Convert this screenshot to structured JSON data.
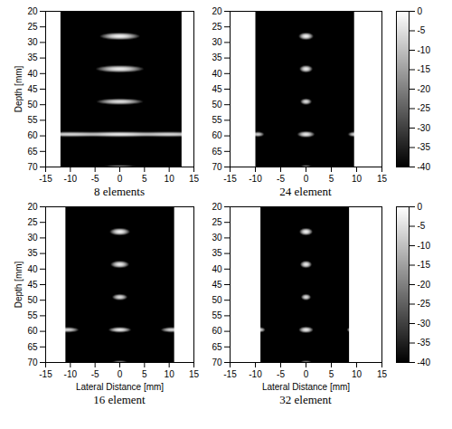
{
  "chart_data": [
    {
      "type": "heatmap",
      "title": "8 elements",
      "ylabel": "Depth [mm]",
      "xlim": [
        -15,
        15
      ],
      "xticks": [
        -15,
        -10,
        -5,
        0,
        5,
        10,
        15
      ],
      "ylim": [
        20,
        70
      ],
      "yticks": [
        20,
        25,
        30,
        35,
        40,
        45,
        50,
        55,
        60,
        65,
        70
      ],
      "image_xlim": [
        -12,
        12.5
      ],
      "clim": [
        -40,
        0
      ],
      "targets": [
        {
          "lateral": 0,
          "depth": 28,
          "peak": -2,
          "lateral_spread": 1.4,
          "axial_spread": 0.4
        },
        {
          "lateral": 0,
          "depth": 38.5,
          "peak": -3,
          "lateral_spread": 1.7,
          "axial_spread": 0.4
        },
        {
          "lateral": 0,
          "depth": 49,
          "peak": -5,
          "lateral_spread": 1.7,
          "axial_spread": 0.35
        },
        {
          "lateral": -10,
          "depth": 59.5,
          "peak": -6,
          "lateral_spread": 3.2,
          "axial_spread": 0.3
        },
        {
          "lateral": 0,
          "depth": 59.5,
          "peak": -3,
          "lateral_spread": 3.2,
          "axial_spread": 0.3
        },
        {
          "lateral": 10,
          "depth": 59.5,
          "peak": -6,
          "lateral_spread": 3.2,
          "axial_spread": 0.3
        },
        {
          "lateral": 0,
          "depth": 70,
          "peak": -18,
          "lateral_spread": 1.5,
          "axial_spread": 0.3
        }
      ]
    },
    {
      "type": "heatmap",
      "title": "24 element",
      "xlim": [
        -15,
        15
      ],
      "xticks": [
        -15,
        -10,
        -5,
        0,
        5,
        10,
        15
      ],
      "ylim": [
        20,
        70
      ],
      "yticks": [
        20,
        25,
        30,
        35,
        40,
        45,
        50,
        55,
        60,
        65,
        70
      ],
      "image_xlim": [
        -10,
        9.5
      ],
      "clim": [
        -40,
        0
      ],
      "cticks": [
        0,
        -5,
        -10,
        -15,
        -20,
        -25,
        -30,
        -35,
        -40
      ],
      "targets": [
        {
          "lateral": 0,
          "depth": 28,
          "peak": -2,
          "lateral_spread": 0.5,
          "axial_spread": 0.4
        },
        {
          "lateral": 0,
          "depth": 38.5,
          "peak": -3,
          "lateral_spread": 0.45,
          "axial_spread": 0.4
        },
        {
          "lateral": 0,
          "depth": 49,
          "peak": -5,
          "lateral_spread": 0.4,
          "axial_spread": 0.35
        },
        {
          "lateral": -9.5,
          "depth": 59.5,
          "peak": -7,
          "lateral_spread": 0.45,
          "axial_spread": 0.3
        },
        {
          "lateral": 0,
          "depth": 59.5,
          "peak": -3,
          "lateral_spread": 0.6,
          "axial_spread": 0.35
        },
        {
          "lateral": 9.5,
          "depth": 59.5,
          "peak": -7,
          "lateral_spread": 0.45,
          "axial_spread": 0.3
        },
        {
          "lateral": 0,
          "depth": 70,
          "peak": -18,
          "lateral_spread": 0.5,
          "axial_spread": 0.3
        }
      ]
    },
    {
      "type": "heatmap",
      "title": "16 element",
      "xlabel": "Lateral Distance [mm]",
      "ylabel": "Depth [mm]",
      "xlim": [
        -15,
        15
      ],
      "xticks": [
        -15,
        -10,
        -5,
        0,
        5,
        10,
        15
      ],
      "ylim": [
        20,
        70
      ],
      "yticks": [
        20,
        25,
        30,
        35,
        40,
        45,
        50,
        55,
        60,
        65,
        70
      ],
      "image_xlim": [
        -11,
        11
      ],
      "clim": [
        -40,
        0
      ],
      "targets": [
        {
          "lateral": 0,
          "depth": 28,
          "peak": -2,
          "lateral_spread": 0.7,
          "axial_spread": 0.4
        },
        {
          "lateral": 0,
          "depth": 38.5,
          "peak": -3,
          "lateral_spread": 0.65,
          "axial_spread": 0.4
        },
        {
          "lateral": 0,
          "depth": 49,
          "peak": -5,
          "lateral_spread": 0.55,
          "axial_spread": 0.35
        },
        {
          "lateral": -10.5,
          "depth": 59.5,
          "peak": -6,
          "lateral_spread": 0.8,
          "axial_spread": 0.3
        },
        {
          "lateral": 0,
          "depth": 59.5,
          "peak": -3,
          "lateral_spread": 0.8,
          "axial_spread": 0.3
        },
        {
          "lateral": 10.5,
          "depth": 59.5,
          "peak": -6,
          "lateral_spread": 0.8,
          "axial_spread": 0.3
        },
        {
          "lateral": 0,
          "depth": 70,
          "peak": -18,
          "lateral_spread": 0.7,
          "axial_spread": 0.3
        }
      ]
    },
    {
      "type": "heatmap",
      "title": "32 element",
      "xlabel": "Lateral Distance [mm]",
      "xlim": [
        -15,
        15
      ],
      "xticks": [
        -15,
        -10,
        -5,
        0,
        5,
        10,
        15
      ],
      "ylim": [
        20,
        70
      ],
      "yticks": [
        20,
        25,
        30,
        35,
        40,
        45,
        50,
        55,
        60,
        65,
        70
      ],
      "image_xlim": [
        -9,
        8.5
      ],
      "clim": [
        -40,
        0
      ],
      "cticks": [
        0,
        -5,
        -10,
        -15,
        -20,
        -25,
        -30,
        -35,
        -40
      ],
      "targets": [
        {
          "lateral": 0,
          "depth": 28,
          "peak": -2,
          "lateral_spread": 0.45,
          "axial_spread": 0.4
        },
        {
          "lateral": 0,
          "depth": 38.5,
          "peak": -3,
          "lateral_spread": 0.4,
          "axial_spread": 0.4
        },
        {
          "lateral": 0,
          "depth": 49,
          "peak": -5,
          "lateral_spread": 0.35,
          "axial_spread": 0.35
        },
        {
          "lateral": -9,
          "depth": 59.5,
          "peak": -8,
          "lateral_spread": 0.35,
          "axial_spread": 0.3
        },
        {
          "lateral": 0,
          "depth": 59.5,
          "peak": -3,
          "lateral_spread": 0.5,
          "axial_spread": 0.35
        },
        {
          "lateral": 9,
          "depth": 59.5,
          "peak": -8,
          "lateral_spread": 0.35,
          "axial_spread": 0.3
        },
        {
          "lateral": 0,
          "depth": 70,
          "peak": -18,
          "lateral_spread": 0.5,
          "axial_spread": 0.3
        }
      ]
    }
  ]
}
